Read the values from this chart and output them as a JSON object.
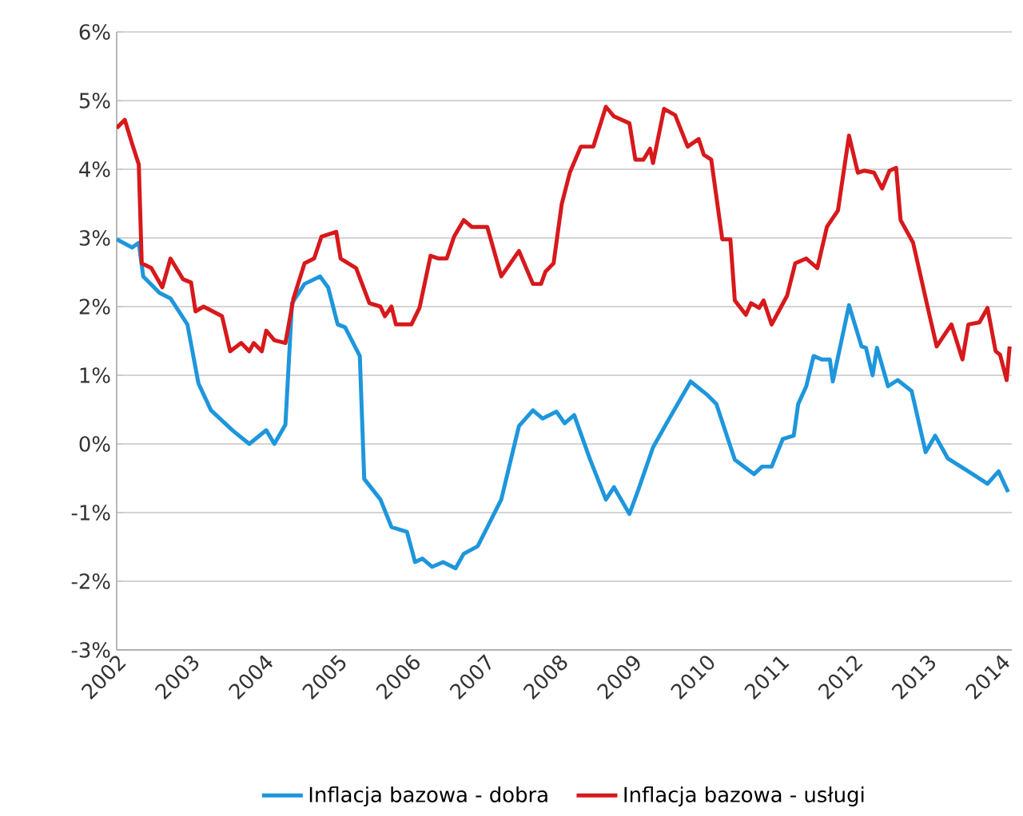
{
  "chart_data": {
    "type": "line",
    "xlim": [
      2002,
      2014.15
    ],
    "ylim": [
      -3,
      6
    ],
    "xticks": [
      2002,
      2003,
      2004,
      2005,
      2006,
      2007,
      2008,
      2009,
      2010,
      2011,
      2012,
      2013,
      2014
    ],
    "yticks": [
      {
        "value": -3,
        "label": "-3%"
      },
      {
        "value": -2,
        "label": "-2%"
      },
      {
        "value": -1,
        "label": "-1%"
      },
      {
        "value": 0,
        "label": "0%"
      },
      {
        "value": 1,
        "label": "1%"
      },
      {
        "value": 2,
        "label": "2%"
      },
      {
        "value": 3,
        "label": "3%"
      },
      {
        "value": 4,
        "label": "4%"
      },
      {
        "value": 5,
        "label": "5%"
      },
      {
        "value": 6,
        "label": "6%"
      }
    ],
    "grid": "y",
    "legend": "bottom",
    "marker": "none",
    "line_style": "solid",
    "series": [
      {
        "name": "Inflacja bazowa - dobra",
        "color": "#1e96dc",
        "x": [
          2002.0,
          2002.21,
          2002.3,
          2002.36,
          2002.58,
          2002.73,
          2002.96,
          2003.11,
          2003.28,
          2003.58,
          2003.8,
          2004.03,
          2004.14,
          2004.29,
          2004.38,
          2004.55,
          2004.76,
          2004.87,
          2005.0,
          2005.1,
          2005.3,
          2005.36,
          2005.58,
          2005.73,
          2005.94,
          2006.05,
          2006.15,
          2006.28,
          2006.43,
          2006.6,
          2006.71,
          2006.9,
          2007.22,
          2007.46,
          2007.65,
          2007.78,
          2007.97,
          2008.08,
          2008.21,
          2008.42,
          2008.64,
          2008.75,
          2008.96,
          2009.07,
          2009.28,
          2009.49,
          2009.79,
          2010.01,
          2010.14,
          2010.39,
          2010.65,
          2010.76,
          2010.89,
          2011.04,
          2011.19,
          2011.25,
          2011.36,
          2011.46,
          2011.57,
          2011.68,
          2011.72,
          2011.94,
          2012.11,
          2012.17,
          2012.26,
          2012.32,
          2012.47,
          2012.6,
          2012.79,
          2012.98,
          2013.11,
          2013.28,
          2013.56,
          2013.82,
          2013.97,
          2014.1
        ],
        "values": [
          2.98,
          2.86,
          2.93,
          2.44,
          2.2,
          2.12,
          1.74,
          0.88,
          0.49,
          0.19,
          0.0,
          0.2,
          0.0,
          0.28,
          2.05,
          2.33,
          2.44,
          2.28,
          1.74,
          1.7,
          1.28,
          -0.51,
          -0.81,
          -1.21,
          -1.28,
          -1.72,
          -1.67,
          -1.79,
          -1.72,
          -1.81,
          -1.6,
          -1.49,
          -0.81,
          0.26,
          0.49,
          0.37,
          0.47,
          0.3,
          0.42,
          -0.21,
          -0.81,
          -0.63,
          -1.02,
          -0.7,
          -0.05,
          0.35,
          0.91,
          0.72,
          0.58,
          -0.23,
          -0.44,
          -0.33,
          -0.33,
          0.07,
          0.12,
          0.58,
          0.84,
          1.28,
          1.23,
          1.23,
          0.91,
          2.02,
          1.42,
          1.4,
          1.0,
          1.4,
          0.84,
          0.93,
          0.77,
          -0.12,
          0.12,
          -0.21,
          -0.4,
          -0.58,
          -0.4,
          -0.7
        ]
      },
      {
        "name": "Inflacja bazowa - usługi",
        "color": "#d7191c",
        "x": [
          2002.0,
          2002.11,
          2002.21,
          2002.3,
          2002.34,
          2002.47,
          2002.62,
          2002.73,
          2002.9,
          2003.01,
          2003.07,
          2003.18,
          2003.43,
          2003.54,
          2003.69,
          2003.8,
          2003.86,
          2003.97,
          2004.03,
          2004.14,
          2004.29,
          2004.4,
          2004.55,
          2004.68,
          2004.78,
          2004.98,
          2005.04,
          2005.25,
          2005.43,
          2005.58,
          2005.64,
          2005.73,
          2005.79,
          2006.0,
          2006.11,
          2006.26,
          2006.37,
          2006.48,
          2006.58,
          2006.71,
          2006.82,
          2007.03,
          2007.22,
          2007.46,
          2007.65,
          2007.76,
          2007.82,
          2007.93,
          2008.04,
          2008.15,
          2008.3,
          2008.47,
          2008.64,
          2008.75,
          2008.96,
          2009.04,
          2009.15,
          2009.24,
          2009.28,
          2009.43,
          2009.58,
          2009.75,
          2009.9,
          2009.97,
          2010.07,
          2010.22,
          2010.33,
          2010.39,
          2010.54,
          2010.61,
          2010.72,
          2010.78,
          2010.89,
          2011.1,
          2011.21,
          2011.36,
          2011.51,
          2011.64,
          2011.79,
          2011.94,
          2012.06,
          2012.15,
          2012.28,
          2012.39,
          2012.49,
          2012.58,
          2012.64,
          2012.81,
          2013.01,
          2013.13,
          2013.33,
          2013.48,
          2013.56,
          2013.71,
          2013.82,
          2013.93,
          2013.99,
          2014.08,
          2014.12
        ],
        "values": [
          4.6,
          4.72,
          4.37,
          4.07,
          2.63,
          2.56,
          2.28,
          2.7,
          2.4,
          2.35,
          1.93,
          2.0,
          1.86,
          1.35,
          1.47,
          1.35,
          1.47,
          1.35,
          1.65,
          1.51,
          1.47,
          2.12,
          2.63,
          2.7,
          3.02,
          3.09,
          2.7,
          2.56,
          2.05,
          2.0,
          1.86,
          2.0,
          1.74,
          1.74,
          1.98,
          2.74,
          2.7,
          2.7,
          3.02,
          3.26,
          3.16,
          3.16,
          2.44,
          2.81,
          2.33,
          2.33,
          2.51,
          2.63,
          3.49,
          3.95,
          4.33,
          4.33,
          4.91,
          4.77,
          4.67,
          4.14,
          4.14,
          4.3,
          4.09,
          4.88,
          4.79,
          4.33,
          4.44,
          4.21,
          4.14,
          2.98,
          2.98,
          2.09,
          1.88,
          2.05,
          1.98,
          2.09,
          1.74,
          2.16,
          2.63,
          2.7,
          2.56,
          3.16,
          3.4,
          4.49,
          3.95,
          3.98,
          3.95,
          3.72,
          3.98,
          4.02,
          3.26,
          2.93,
          1.98,
          1.42,
          1.74,
          1.23,
          1.74,
          1.77,
          1.98,
          1.35,
          1.3,
          0.93,
          1.42
        ]
      }
    ]
  }
}
